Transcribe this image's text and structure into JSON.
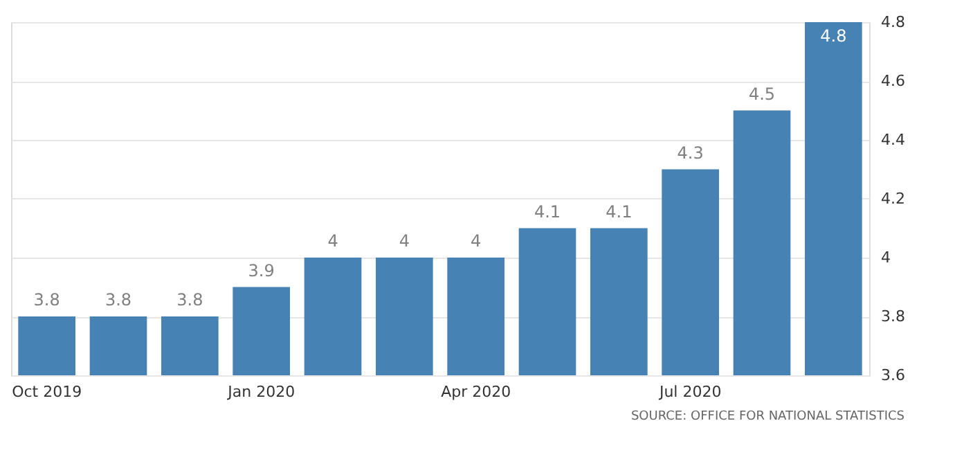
{
  "chart_data": {
    "type": "bar",
    "categories": [
      "Oct 2019",
      null,
      null,
      "Jan 2020",
      null,
      null,
      "Apr 2020",
      null,
      null,
      "Jul 2020",
      null,
      null
    ],
    "values": [
      3.8,
      3.8,
      3.8,
      3.9,
      4,
      4,
      4,
      4.1,
      4.1,
      4.3,
      4.5,
      4.8
    ],
    "color": "#4682b4",
    "ylim": [
      3.6,
      4.8
    ],
    "yticks": [
      3.6,
      3.8,
      4,
      4.2,
      4.4,
      4.6,
      4.8
    ],
    "grid": "y",
    "data_labels": true,
    "annotations": [
      "SOURCE: OFFICE FOR NATIONAL STATISTICS"
    ]
  }
}
